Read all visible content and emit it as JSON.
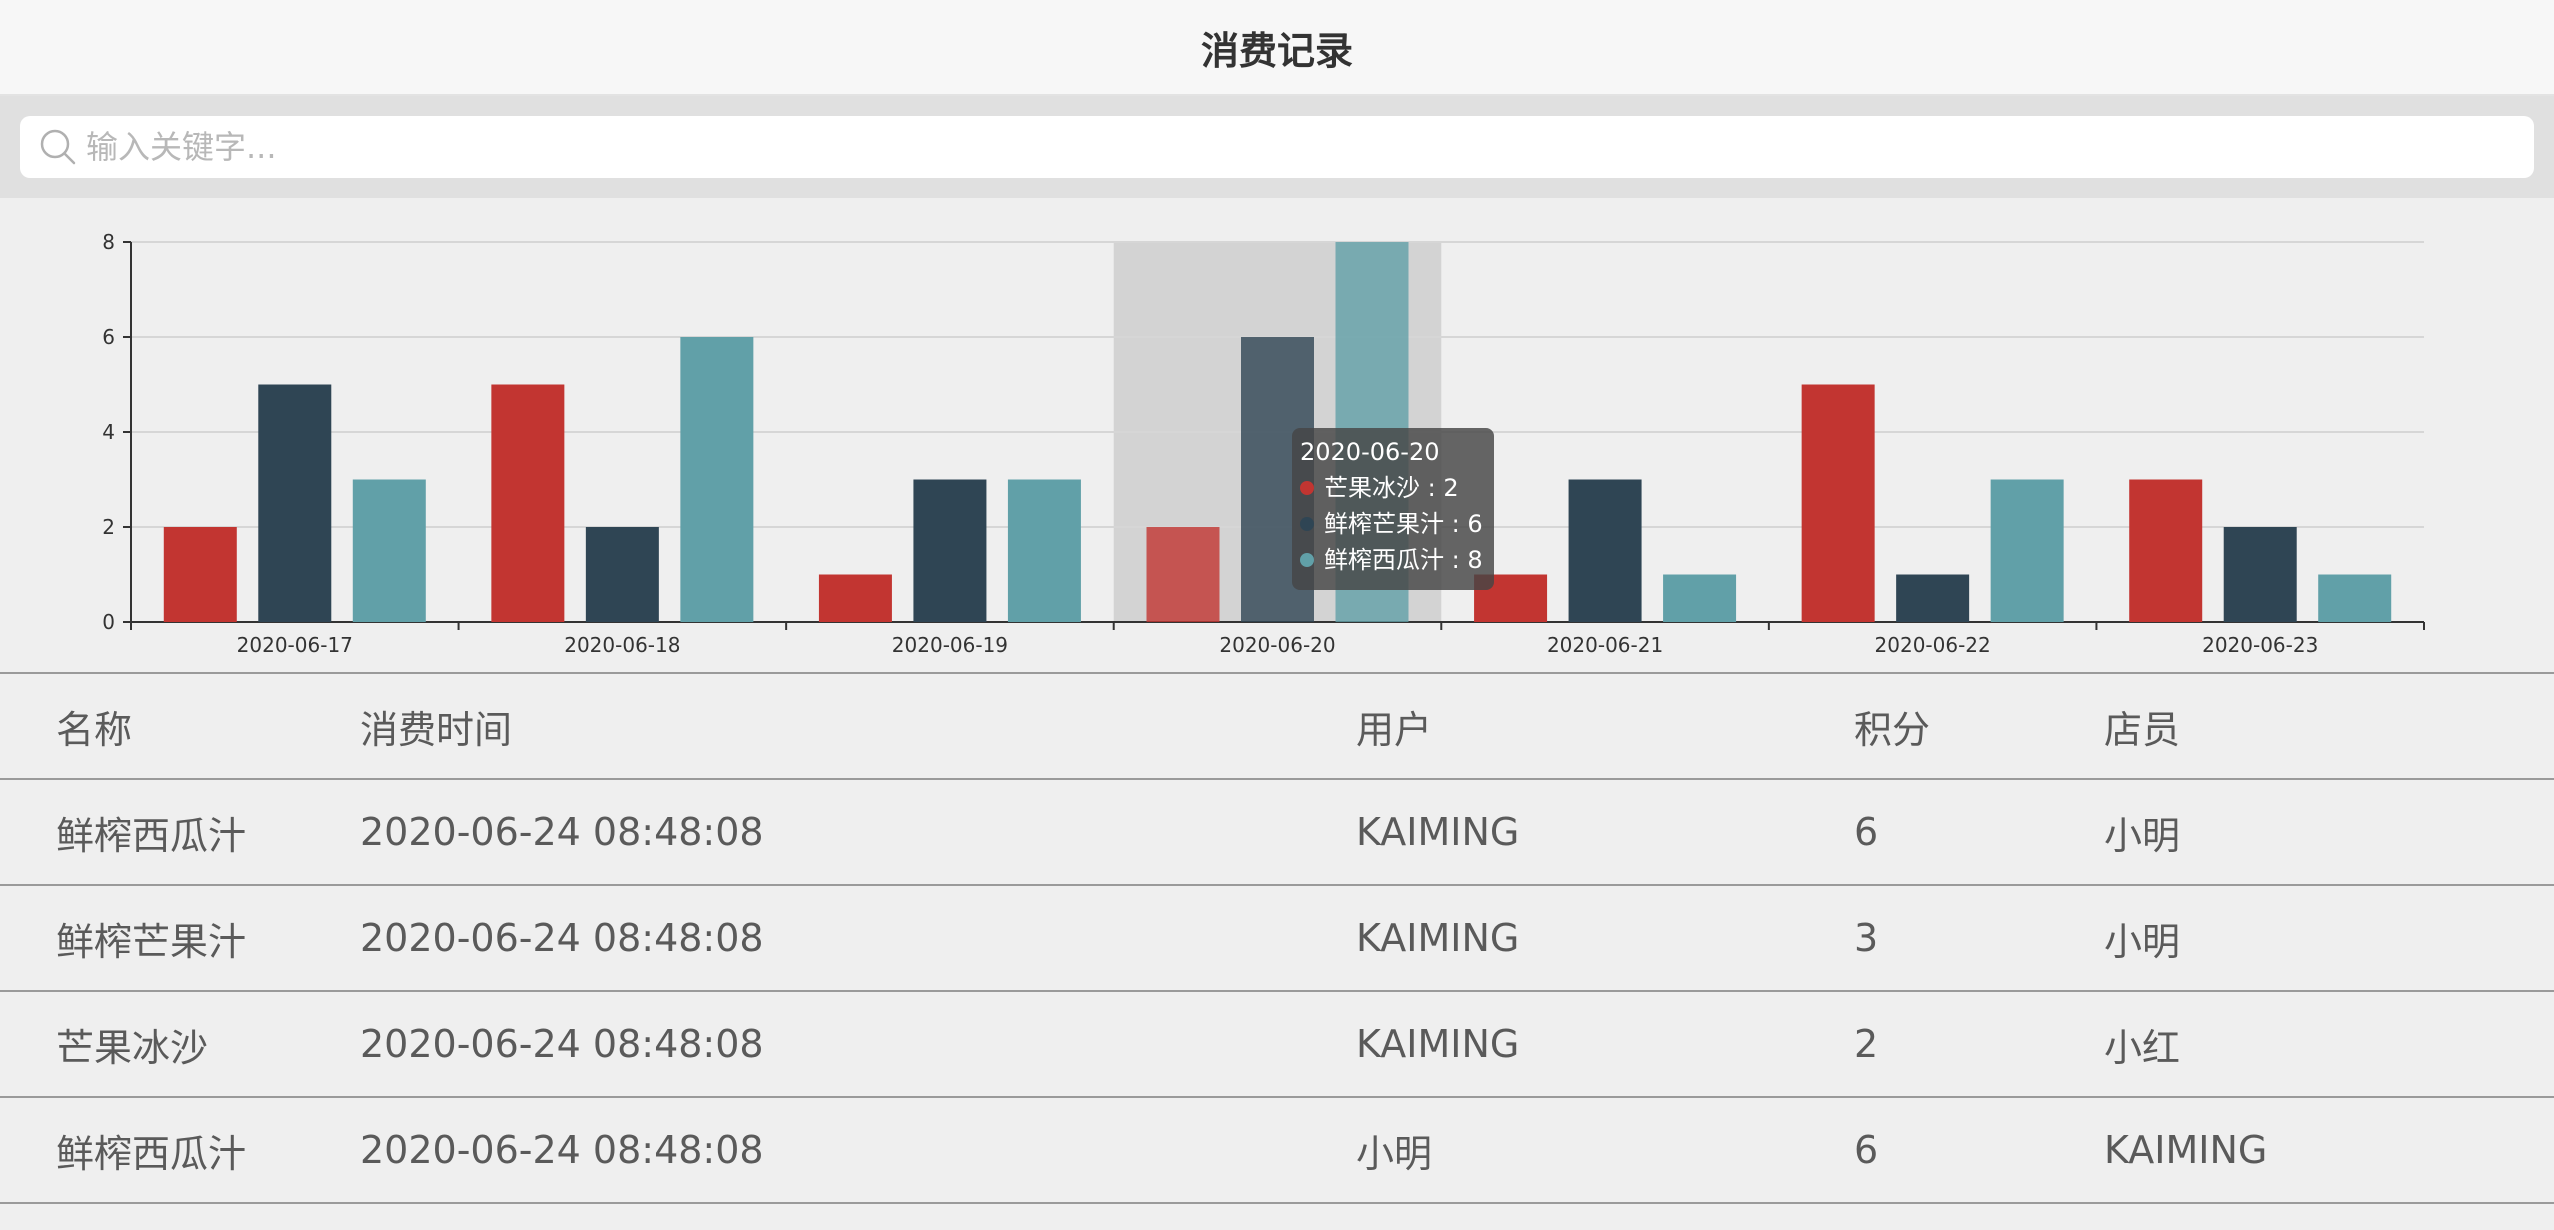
{
  "navbar": {
    "title": "消费记录"
  },
  "search": {
    "placeholder": "输入关键字..."
  },
  "chart_data": {
    "type": "bar",
    "categories": [
      "2020-06-17",
      "2020-06-18",
      "2020-06-19",
      "2020-06-20",
      "2020-06-21",
      "2020-06-22",
      "2020-06-23"
    ],
    "series": [
      {
        "name": "芒果冰沙",
        "color": "#c23531",
        "values": [
          2,
          5,
          1,
          2,
          1,
          5,
          3
        ]
      },
      {
        "name": "鲜榨芒果汁",
        "color": "#2f4554",
        "values": [
          5,
          2,
          3,
          6,
          3,
          1,
          2
        ]
      },
      {
        "name": "鲜榨西瓜汁",
        "color": "#61a0a8",
        "values": [
          3,
          6,
          3,
          8,
          1,
          3,
          1
        ]
      }
    ],
    "yticks": [
      0,
      2,
      4,
      6,
      8
    ],
    "ylim": [
      0,
      8
    ],
    "highlighted_category": "2020-06-20",
    "grid": true,
    "legend": "none"
  },
  "tooltip": {
    "date": "2020-06-20",
    "rows": [
      {
        "text": "芒果冰沙 : 2",
        "color": "#c23531"
      },
      {
        "text": "鲜榨芒果汁 : 6",
        "color": "#2f4554"
      },
      {
        "text": "鲜榨西瓜汁 : 8",
        "color": "#61a0a8"
      }
    ]
  },
  "table": {
    "headers": [
      "名称",
      "消费时间",
      "用户",
      "积分",
      "店员"
    ],
    "rows": [
      [
        "鲜榨西瓜汁",
        "2020-06-24 08:48:08",
        "KAIMING",
        "6",
        "小明"
      ],
      [
        "鲜榨芒果汁",
        "2020-06-24 08:48:08",
        "KAIMING",
        "3",
        "小明"
      ],
      [
        "芒果冰沙",
        "2020-06-24 08:48:08",
        "KAIMING",
        "2",
        "小红"
      ],
      [
        "鲜榨西瓜汁",
        "2020-06-24 08:48:08",
        "小明",
        "6",
        "KAIMING"
      ]
    ]
  }
}
